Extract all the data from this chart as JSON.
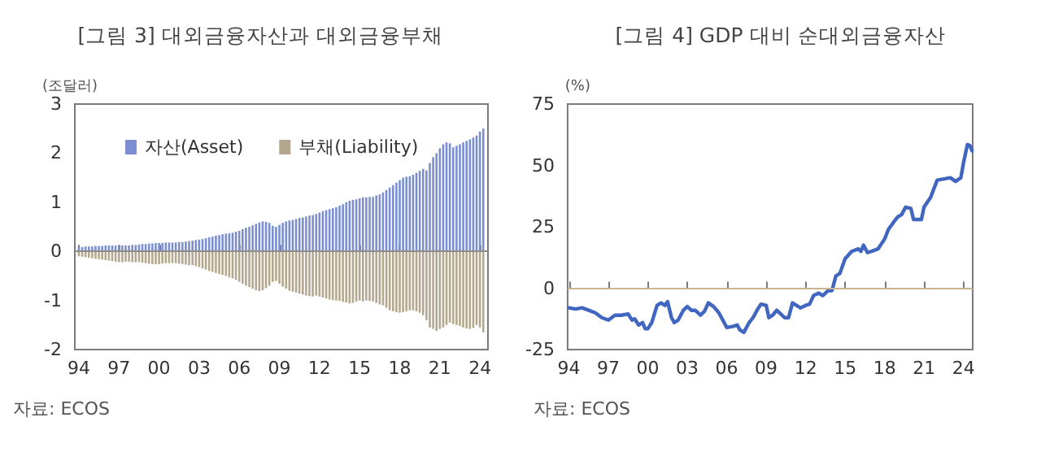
{
  "chart_data": [
    {
      "type": "bar",
      "title": "[그림 3] 대외금융자산과 대외금융부채",
      "ylabel": "(조달러)",
      "annotations": [
        "자료: ECOS"
      ],
      "x": [
        1994,
        1994.25,
        1994.5,
        1994.75,
        1995,
        1995.25,
        1995.5,
        1995.75,
        1996,
        1996.25,
        1996.5,
        1996.75,
        1997,
        1997.25,
        1997.5,
        1997.75,
        1998,
        1998.25,
        1998.5,
        1998.75,
        1999,
        1999.25,
        1999.5,
        1999.75,
        2000,
        2000.25,
        2000.5,
        2000.75,
        2001,
        2001.25,
        2001.5,
        2001.75,
        2002,
        2002.25,
        2002.5,
        2002.75,
        2003,
        2003.25,
        2003.5,
        2003.75,
        2004,
        2004.25,
        2004.5,
        2004.75,
        2005,
        2005.25,
        2005.5,
        2005.75,
        2006,
        2006.25,
        2006.5,
        2006.75,
        2007,
        2007.25,
        2007.5,
        2007.75,
        2008,
        2008.25,
        2008.5,
        2008.75,
        2009,
        2009.25,
        2009.5,
        2009.75,
        2010,
        2010.25,
        2010.5,
        2010.75,
        2011,
        2011.25,
        2011.5,
        2011.75,
        2012,
        2012.25,
        2012.5,
        2012.75,
        2013,
        2013.25,
        2013.5,
        2013.75,
        2014,
        2014.25,
        2014.5,
        2014.75,
        2015,
        2015.25,
        2015.5,
        2015.75,
        2016,
        2016.25,
        2016.5,
        2016.75,
        2017,
        2017.25,
        2017.5,
        2017.75,
        2018,
        2018.25,
        2018.5,
        2018.75,
        2019,
        2019.25,
        2019.5,
        2019.75,
        2020,
        2020.25,
        2020.5,
        2020.75,
        2021,
        2021.25,
        2021.5,
        2021.75,
        2022,
        2022.25,
        2022.5,
        2022.75,
        2023,
        2023.25,
        2023.5,
        2023.75,
        2024,
        2024.25
      ],
      "series": [
        {
          "name": "자산(Asset)",
          "color": "#7b8fd0",
          "values": [
            0.09,
            0.09,
            0.1,
            0.1,
            0.1,
            0.11,
            0.11,
            0.11,
            0.12,
            0.12,
            0.12,
            0.12,
            0.13,
            0.12,
            0.12,
            0.12,
            0.13,
            0.13,
            0.14,
            0.15,
            0.15,
            0.16,
            0.16,
            0.17,
            0.17,
            0.17,
            0.18,
            0.18,
            0.18,
            0.18,
            0.19,
            0.19,
            0.2,
            0.21,
            0.22,
            0.23,
            0.24,
            0.25,
            0.27,
            0.29,
            0.3,
            0.32,
            0.33,
            0.35,
            0.36,
            0.37,
            0.38,
            0.4,
            0.42,
            0.45,
            0.48,
            0.5,
            0.53,
            0.56,
            0.59,
            0.61,
            0.6,
            0.58,
            0.52,
            0.5,
            0.54,
            0.58,
            0.61,
            0.63,
            0.64,
            0.66,
            0.68,
            0.69,
            0.71,
            0.73,
            0.74,
            0.76,
            0.79,
            0.82,
            0.84,
            0.86,
            0.88,
            0.9,
            0.93,
            0.96,
            1.0,
            1.03,
            1.05,
            1.06,
            1.08,
            1.1,
            1.1,
            1.11,
            1.11,
            1.14,
            1.16,
            1.2,
            1.25,
            1.3,
            1.35,
            1.4,
            1.45,
            1.5,
            1.52,
            1.53,
            1.56,
            1.6,
            1.64,
            1.68,
            1.65,
            1.8,
            1.92,
            2.0,
            2.1,
            2.18,
            2.22,
            2.2,
            2.12,
            2.15,
            2.18,
            2.22,
            2.25,
            2.28,
            2.32,
            2.36,
            2.44,
            2.5
          ]
        },
        {
          "name": "부채(Liability)",
          "color": "#b3a78d",
          "values": [
            -0.1,
            -0.11,
            -0.12,
            -0.13,
            -0.14,
            -0.15,
            -0.16,
            -0.17,
            -0.18,
            -0.19,
            -0.2,
            -0.21,
            -0.22,
            -0.22,
            -0.21,
            -0.21,
            -0.22,
            -0.22,
            -0.22,
            -0.23,
            -0.24,
            -0.25,
            -0.26,
            -0.26,
            -0.26,
            -0.25,
            -0.24,
            -0.24,
            -0.24,
            -0.24,
            -0.25,
            -0.26,
            -0.27,
            -0.28,
            -0.28,
            -0.3,
            -0.32,
            -0.35,
            -0.37,
            -0.4,
            -0.42,
            -0.44,
            -0.46,
            -0.48,
            -0.5,
            -0.53,
            -0.55,
            -0.58,
            -0.62,
            -0.66,
            -0.7,
            -0.73,
            -0.76,
            -0.79,
            -0.81,
            -0.79,
            -0.75,
            -0.7,
            -0.62,
            -0.6,
            -0.66,
            -0.72,
            -0.76,
            -0.8,
            -0.82,
            -0.84,
            -0.86,
            -0.88,
            -0.9,
            -0.91,
            -0.92,
            -0.9,
            -0.92,
            -0.94,
            -0.96,
            -0.98,
            -0.99,
            -1.0,
            -1.01,
            -1.03,
            -1.04,
            -1.06,
            -1.05,
            -1.02,
            -1.0,
            -1.02,
            -1.0,
            -1.01,
            -1.02,
            -1.05,
            -1.08,
            -1.1,
            -1.15,
            -1.2,
            -1.22,
            -1.24,
            -1.25,
            -1.24,
            -1.22,
            -1.2,
            -1.2,
            -1.22,
            -1.25,
            -1.3,
            -1.4,
            -1.55,
            -1.58,
            -1.62,
            -1.58,
            -1.55,
            -1.5,
            -1.45,
            -1.48,
            -1.5,
            -1.52,
            -1.55,
            -1.57,
            -1.58,
            -1.56,
            -1.5,
            -1.55,
            -1.65
          ]
        }
      ],
      "xlim": [
        1993.7,
        2024.6
      ],
      "xticks": [
        {
          "value": 1994,
          "label": "94"
        },
        {
          "value": 1997,
          "label": "97"
        },
        {
          "value": 2000,
          "label": "00"
        },
        {
          "value": 2003,
          "label": "03"
        },
        {
          "value": 2006,
          "label": "06"
        },
        {
          "value": 2009,
          "label": "09"
        },
        {
          "value": 2012,
          "label": "12"
        },
        {
          "value": 2015,
          "label": "15"
        },
        {
          "value": 2018,
          "label": "18"
        },
        {
          "value": 2021,
          "label": "21"
        },
        {
          "value": 2024,
          "label": "24"
        }
      ],
      "ylim": [
        -2,
        3
      ],
      "yticks": [
        -2,
        -1,
        0,
        1,
        2,
        3
      ],
      "ref_lines": [
        {
          "axis": "y",
          "value": 0,
          "color": "#8c8c8c"
        }
      ],
      "legend": "top left",
      "grid": false
    },
    {
      "type": "line",
      "title": "[그림 4] GDP 대비 순대외금융자산",
      "ylabel": "(%)",
      "annotations": [
        "자료: ECOS"
      ],
      "series": [
        {
          "color": "#4166c0",
          "x": [
            1994,
            1994.5,
            1995,
            1995.5,
            1996,
            1996.5,
            1997,
            1997.5,
            1998,
            1998.5,
            1998.8,
            1999,
            1999.3,
            1999.6,
            1999.8,
            2000,
            2000.3,
            2000.7,
            2001,
            2001.3,
            2001.5,
            2001.8,
            2002,
            2002.3,
            2002.7,
            2003,
            2003.3,
            2003.6,
            2004,
            2004.3,
            2004.6,
            2005,
            2005.4,
            2005.7,
            2006,
            2006.5,
            2006.8,
            2007,
            2007.3,
            2007.7,
            2008,
            2008.3,
            2008.6,
            2009,
            2009.2,
            2009.5,
            2009.8,
            2010,
            2010.4,
            2010.7,
            2011,
            2011.3,
            2011.6,
            2012,
            2012.3,
            2012.6,
            2013,
            2013.3,
            2013.7,
            2014,
            2014.3,
            2014.6,
            2015,
            2015.5,
            2016,
            2016.2,
            2016.4,
            2016.7,
            2017,
            2017.5,
            2018,
            2018.3,
            2018.7,
            2019,
            2019.3,
            2019.6,
            2020,
            2020.2,
            2020.8,
            2021,
            2021.5,
            2022,
            2022.5,
            2023,
            2023.4,
            2023.8,
            2024,
            2024.3,
            2024.5,
            2024.65
          ],
          "values": [
            -8,
            -8.5,
            -8,
            -9,
            -10,
            -12,
            -13,
            -11,
            -11,
            -10.5,
            -13,
            -12.5,
            -15,
            -14,
            -16.5,
            -16.5,
            -14,
            -7,
            -6,
            -7,
            -5.5,
            -12,
            -14,
            -13,
            -9,
            -7.5,
            -9,
            -9,
            -11,
            -9.5,
            -6,
            -7.5,
            -10,
            -13,
            -16,
            -15.5,
            -15,
            -17,
            -18,
            -14,
            -12,
            -9,
            -6.5,
            -7,
            -12,
            -11,
            -9,
            -10,
            -12,
            -12,
            -6,
            -7,
            -8,
            -7,
            -6.5,
            -3,
            -2,
            -3,
            -1,
            -1,
            5,
            6,
            12,
            15,
            16,
            15,
            17.5,
            14.5,
            15,
            16,
            20,
            24,
            27,
            29,
            30,
            33,
            32.5,
            28,
            28,
            33,
            37,
            44,
            44.5,
            45,
            43.5,
            45,
            51,
            58.5,
            58,
            56
          ]
        }
      ],
      "xlim": [
        1993.9,
        2024.7
      ],
      "xticks": [
        {
          "value": 1994,
          "label": "94"
        },
        {
          "value": 1997,
          "label": "97"
        },
        {
          "value": 2000,
          "label": "00"
        },
        {
          "value": 2003,
          "label": "03"
        },
        {
          "value": 2006,
          "label": "06"
        },
        {
          "value": 2009,
          "label": "09"
        },
        {
          "value": 2012,
          "label": "12"
        },
        {
          "value": 2015,
          "label": "15"
        },
        {
          "value": 2018,
          "label": "18"
        },
        {
          "value": 2021,
          "label": "21"
        },
        {
          "value": 2024,
          "label": "24"
        }
      ],
      "ylim": [
        -25,
        75
      ],
      "yticks": [
        -25,
        0,
        25,
        50,
        75
      ],
      "ref_lines": [
        {
          "axis": "y",
          "value": 0,
          "color": "#c9b48f"
        }
      ],
      "legend": false,
      "grid": false,
      "marker": "none",
      "line_style": "solid"
    }
  ]
}
